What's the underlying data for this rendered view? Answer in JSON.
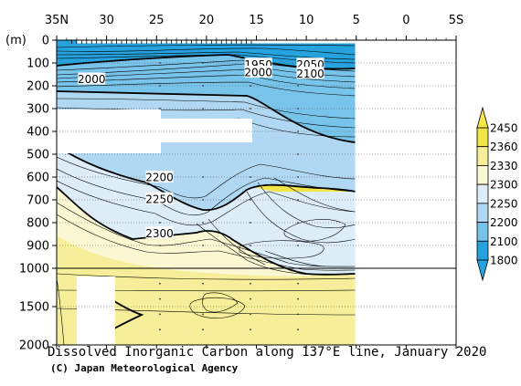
{
  "chart_data": {
    "type": "contour",
    "title": "Dissolved Inorganic Carbon along 137°E line, January 2020",
    "credit": "(C) Japan Meteorological Agency",
    "x_tick_labels": [
      "35N",
      "30",
      "25",
      "20",
      "15",
      "10",
      "5",
      "0",
      "5S"
    ],
    "x_ticks_latitude": [
      35,
      30,
      25,
      20,
      15,
      10,
      5,
      0,
      -5
    ],
    "xlim": [
      35,
      -5
    ],
    "ylabel": "(m)",
    "y_tick_labels": [
      "0",
      "100",
      "200",
      "300",
      "400",
      "500",
      "600",
      "700",
      "800",
      "900",
      "1000",
      "1500",
      "2000"
    ],
    "y_ticks_depth": [
      0,
      100,
      200,
      300,
      400,
      500,
      600,
      700,
      800,
      900,
      1000,
      1500,
      2000
    ],
    "ylim": [
      0,
      2000
    ],
    "depth_axis_break": 1000,
    "data_extent_latitude": [
      33,
      5
    ],
    "contour_labels": [
      {
        "text": "2000",
        "lat": 31.5,
        "depth": 170
      },
      {
        "text": "1950",
        "lat": 14.8,
        "depth": 105
      },
      {
        "text": "2000",
        "lat": 14.8,
        "depth": 140
      },
      {
        "text": "2050",
        "lat": 9.6,
        "depth": 105
      },
      {
        "text": "2100",
        "lat": 9.6,
        "depth": 145
      },
      {
        "text": "2200",
        "lat": 24.7,
        "depth": 600
      },
      {
        "text": "2250",
        "lat": 24.7,
        "depth": 695
      },
      {
        "text": "2300",
        "lat": 24.7,
        "depth": 845
      }
    ],
    "colorbar": {
      "labels": [
        "2450",
        "2360",
        "2330",
        "2300",
        "2250",
        "2200",
        "2100",
        "1800"
      ],
      "colors": [
        "#f2e54a",
        "#f6ee98",
        "#fbf7d2",
        "#dcedf8",
        "#b1d8f2",
        "#78c3ea",
        "#26a3de"
      ]
    },
    "zones": [
      {
        "name": "deep-low",
        "color": "#26a3de"
      },
      {
        "name": "mid-blue",
        "color": "#78c3ea"
      },
      {
        "name": "light-blue",
        "color": "#b1d8f2"
      },
      {
        "name": "pale-blue",
        "color": "#dcedf8"
      },
      {
        "name": "cream",
        "color": "#fbf7d2"
      },
      {
        "name": "pale-yellow",
        "color": "#f6ee98"
      },
      {
        "name": "yellow",
        "color": "#f2e54a"
      }
    ]
  }
}
